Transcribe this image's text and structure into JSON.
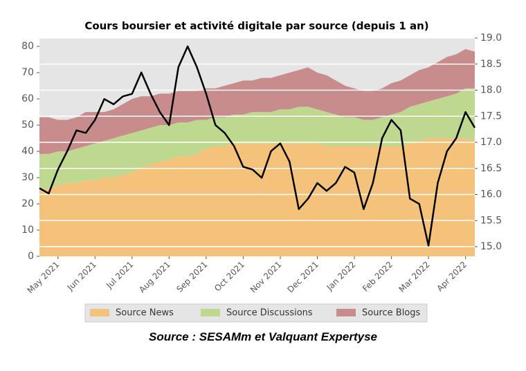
{
  "chart_data": {
    "type": "stacked-area-line",
    "title": "Cours boursier et activité digitale par source (depuis 1 an)",
    "categories": [
      null,
      null,
      "May 2021",
      null,
      null,
      null,
      "Jun 2021",
      null,
      null,
      null,
      "Jul 2021",
      null,
      null,
      null,
      "Aug 2021",
      null,
      null,
      null,
      "Sep 2021",
      null,
      null,
      null,
      "Oct 2021",
      null,
      null,
      null,
      "Nov 2021",
      null,
      null,
      null,
      "Dec 2021",
      null,
      null,
      null,
      "Jan 2022",
      null,
      null,
      null,
      "Feb 2022",
      null,
      null,
      null,
      "Mar 2022",
      null,
      null,
      null,
      "Apr 2022",
      null
    ],
    "series": [
      {
        "name": "Source News",
        "color": "#f5c27c",
        "values": [
          25,
          26,
          27,
          28,
          28,
          29,
          29,
          30,
          30,
          31,
          32,
          34,
          35,
          36,
          37,
          38,
          38,
          39,
          41,
          42,
          42,
          43,
          43,
          43,
          43,
          43,
          43,
          43,
          43,
          43,
          43,
          42,
          42,
          42,
          42,
          42,
          42,
          42,
          42,
          42,
          43,
          44,
          45,
          45,
          45,
          45,
          45,
          44
        ]
      },
      {
        "name": "Source Discussions",
        "color": "#bed98f",
        "values": [
          14,
          13,
          13,
          12,
          13,
          13,
          14,
          14,
          15,
          15,
          15,
          14,
          14,
          14,
          13,
          13,
          13,
          13,
          11,
          11,
          11,
          11,
          11,
          12,
          12,
          12,
          13,
          13,
          14,
          14,
          13,
          13,
          12,
          11,
          11,
          10,
          10,
          11,
          12,
          13,
          14,
          14,
          14,
          15,
          16,
          17,
          19,
          20
        ]
      },
      {
        "name": "Source Blogs",
        "color": "#c98c8c",
        "values": [
          14,
          14,
          12,
          12,
          12,
          13,
          12,
          11,
          11,
          12,
          13,
          13,
          12,
          12,
          12,
          12,
          12,
          11,
          12,
          11,
          12,
          12,
          13,
          12,
          13,
          13,
          13,
          14,
          14,
          15,
          14,
          14,
          13,
          12,
          11,
          11,
          11,
          11,
          12,
          12,
          12,
          13,
          13,
          14,
          15,
          15,
          15,
          14
        ]
      }
    ],
    "line": {
      "color": "#000000",
      "axis": "y2",
      "values": [
        16.12,
        16.02,
        16.48,
        16.83,
        17.23,
        17.18,
        17.43,
        17.83,
        17.73,
        17.88,
        17.93,
        18.34,
        17.93,
        17.58,
        17.33,
        18.44,
        18.84,
        18.44,
        17.93,
        17.33,
        17.18,
        16.93,
        16.53,
        16.48,
        16.32,
        16.83,
        16.98,
        16.63,
        15.72,
        15.92,
        16.22,
        16.07,
        16.22,
        16.53,
        16.42,
        15.72,
        16.22,
        17.08,
        17.43,
        17.23,
        15.92,
        15.82,
        15.02,
        16.22,
        16.83,
        17.08,
        17.58,
        17.28
      ]
    },
    "ylim": [
      0,
      83.2
    ],
    "yticks": [
      0,
      10,
      20,
      30,
      40,
      50,
      60,
      70,
      80
    ],
    "y2lim": [
      14.815,
      19.0
    ],
    "y2ticks": [
      {
        "value": 15,
        "label": "15.0"
      },
      15.5,
      {
        "value": 16,
        "label": "16.0"
      },
      16.5,
      {
        "value": 17,
        "label": "17.0"
      },
      17.5,
      {
        "value": 18,
        "label": "18.0"
      },
      18.5,
      {
        "value": 19,
        "label": "19.0"
      }
    ],
    "grid": true,
    "legend": "bottom",
    "source": "Source : SESAMm  et Valquant Expertyse"
  }
}
